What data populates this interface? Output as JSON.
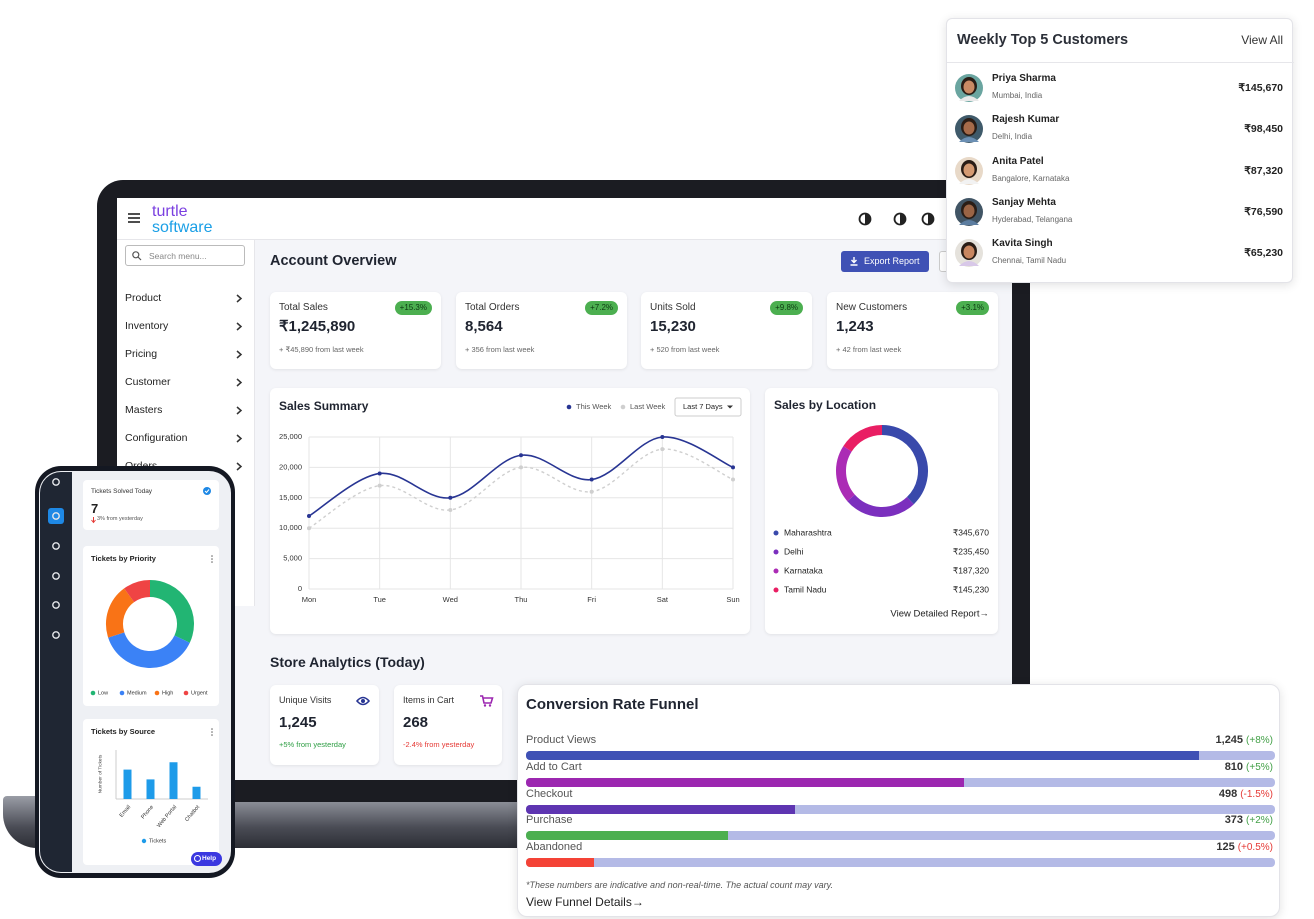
{
  "customers": {
    "title": "Weekly Top 5 Customers",
    "view_all": "View All",
    "rows": [
      {
        "name": "Priya Sharma",
        "location": "Mumbai, India",
        "amount": "₹145,670"
      },
      {
        "name": "Rajesh Kumar",
        "location": "Delhi, India",
        "amount": "₹98,450"
      },
      {
        "name": "Anita Patel",
        "location": "Bangalore, Karnataka",
        "amount": "₹87,320"
      },
      {
        "name": "Sanjay Mehta",
        "location": "Hyderabad, Telangana",
        "amount": "₹76,590"
      },
      {
        "name": "Kavita Singh",
        "location": "Chennai, Tamil Nadu",
        "amount": "₹65,230"
      }
    ]
  },
  "app": {
    "logo": [
      "turtle",
      "software"
    ],
    "search_placeholder": "Search menu...",
    "menu": [
      "Product",
      "Inventory",
      "Pricing",
      "Customer",
      "Masters",
      "Configuration",
      "Orders"
    ],
    "page_title": "Account Overview",
    "export_button": "Export Report",
    "kpis": [
      {
        "label": "Total Sales",
        "value": "₹1,245,890",
        "badge": "+15.3%",
        "note": "+ ₹45,890 from last week"
      },
      {
        "label": "Total Orders",
        "value": "8,564",
        "badge": "+7.2%",
        "note": "+ 356 from last week"
      },
      {
        "label": "Units Sold",
        "value": "15,230",
        "badge": "+9.8%",
        "note": "+ 520 from last week"
      },
      {
        "label": "New Customers",
        "value": "1,243",
        "badge": "+3.1%",
        "note": "+ 42 from last week"
      }
    ],
    "sales_summary": {
      "type": "line",
      "title": "Sales Summary",
      "filter": "Last 7 Days",
      "categories": [
        "Mon",
        "Tue",
        "Wed",
        "Thu",
        "Fri",
        "Sat",
        "Sun"
      ],
      "series": [
        {
          "name": "This Week",
          "color": "#283593",
          "line_style": "solid",
          "values": [
            12000,
            19000,
            15000,
            22000,
            18000,
            25000,
            20000
          ]
        },
        {
          "name": "Last Week",
          "color": "#cfcfcf",
          "line_style": "dashed",
          "values": [
            10000,
            17000,
            13000,
            20000,
            16000,
            23000,
            18000
          ]
        }
      ],
      "ylim": [
        0,
        25000
      ],
      "yticks": [
        0,
        {
          "value": 5000,
          "label": "5,000"
        },
        {
          "value": 10000,
          "label": "10,000"
        },
        {
          "value": 15000,
          "label": "15,000"
        },
        {
          "value": 20000,
          "label": "20,000"
        },
        {
          "value": 25000,
          "label": "25,000"
        }
      ],
      "grid": true,
      "smooth": true
    },
    "sales_by_location": {
      "type": "donut",
      "title": "Sales by Location",
      "categories": [
        "Maharashtra",
        "Delhi",
        "Karnataka",
        "Tamil Nadu"
      ],
      "values": [
        345670,
        235450,
        187320,
        145230
      ],
      "value_labels": [
        "₹345,670",
        "₹235,450",
        "₹187,320",
        "₹145,230"
      ],
      "colors": [
        "#3949ab",
        "#7b2fbe",
        "#ab2bb5",
        "#e91e63"
      ],
      "link": "View Detailed Report→"
    },
    "store_analytics": {
      "title": "Store Analytics (Today)",
      "cards": [
        {
          "label": "Unique Visits",
          "value": "1,245",
          "note": "+5% from yesterday",
          "note_color": "#2e9e44",
          "icon_color": "#283593"
        },
        {
          "label": "Items in Cart",
          "value": "268",
          "note": "-2.4% from yesterday",
          "note_color": "#e53935",
          "icon_color": "#9c27b0"
        }
      ]
    }
  },
  "funnel": {
    "type": "bar",
    "orientation": "horizontal",
    "title": "Conversion Rate Funnel",
    "categories": [
      "Product Views",
      "Add to Cart",
      "Checkout",
      "Purchase",
      "Abandoned"
    ],
    "values": [
      1245,
      810,
      498,
      373,
      125
    ],
    "value_labels": [
      "1,245",
      "810",
      "498",
      "373",
      "125"
    ],
    "changes": [
      "(+8%)",
      "(+5%)",
      "(-1.5%)",
      "(+2%)",
      "(+0.5%)"
    ],
    "change_colors": [
      "#43a047",
      "#43a047",
      "#e53935",
      "#43a047",
      "#e53935"
    ],
    "colors": [
      "#3f51b5",
      "#9c27b0",
      "#5e35b1",
      "#4caf50",
      "#f44336"
    ],
    "track_color": "#b4bae6",
    "xlim": [
      0,
      1385
    ],
    "note": "*These numbers are indicative and non-real-time. The actual count may vary.",
    "link": "View Funnel Details→"
  },
  "mobile": {
    "tickets_solved": {
      "label": "Tickets Solved Today",
      "value": "7",
      "note": "3% from yesterday"
    },
    "priority": {
      "type": "donut",
      "title": "Tickets by Priority",
      "categories": [
        "Low",
        "Medium",
        "High",
        "Urgent"
      ],
      "values": [
        32,
        38,
        20,
        10
      ],
      "colors": [
        "#22b573",
        "#3b82f6",
        "#f97316",
        "#ef4444"
      ]
    },
    "source": {
      "type": "bar",
      "title": "Tickets by Source",
      "categories": [
        "Email",
        "Phone",
        "Web Portal",
        "Chatbot"
      ],
      "series": [
        {
          "name": "Tickets",
          "color": "#1e9be9",
          "values": [
            12,
            8,
            15,
            5
          ]
        }
      ],
      "ylabel": "Number of Tickets",
      "ylim": [
        0,
        20
      ]
    },
    "help": "Help"
  }
}
